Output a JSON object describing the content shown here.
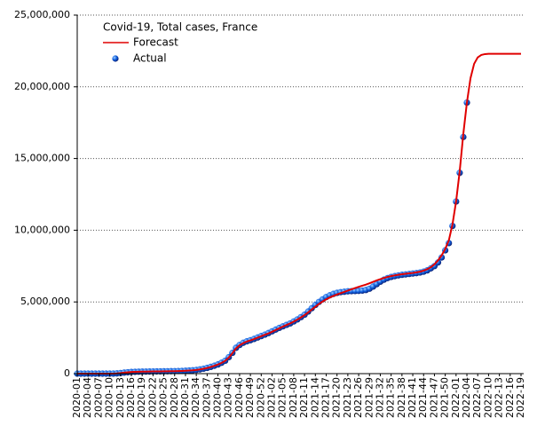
{
  "chart_data": {
    "type": "line",
    "title": "Covid-19, Total cases, France",
    "categories": [
      "2020-01",
      null,
      null,
      "2020-04",
      null,
      null,
      "2020-07",
      null,
      null,
      "2020-10",
      null,
      null,
      "2020-13",
      null,
      null,
      "2020-16",
      null,
      null,
      "2020-19",
      null,
      null,
      "2020-22",
      null,
      null,
      "2020-25",
      null,
      null,
      "2020-28",
      null,
      null,
      "2020-31",
      null,
      null,
      "2020-34",
      null,
      null,
      "2020-37",
      null,
      null,
      "2020-40",
      null,
      null,
      "2020-43",
      null,
      null,
      "2020-46",
      null,
      null,
      "2020-49",
      null,
      null,
      "2020-52",
      null,
      null,
      "2021-02",
      null,
      null,
      "2021-05",
      null,
      null,
      "2021-08",
      null,
      null,
      "2021-11",
      null,
      null,
      "2021-14",
      null,
      null,
      "2021-17",
      null,
      null,
      "2021-20",
      null,
      null,
      "2021-23",
      null,
      null,
      "2021-26",
      null,
      null,
      "2021-29",
      null,
      null,
      "2021-32",
      null,
      null,
      "2021-35",
      null,
      null,
      "2021-38",
      null,
      null,
      "2021-41",
      null,
      null,
      "2021-44",
      null,
      null,
      "2021-47",
      null,
      null,
      "2021-50",
      null,
      null,
      "2022-01",
      null,
      null,
      "2022-04",
      null,
      null,
      "2022-07",
      null,
      null,
      "2022-10",
      null,
      null,
      "2022-13",
      null,
      null,
      "2022-16",
      null,
      null,
      "2022-19"
    ],
    "series": [
      {
        "name": "Forecast",
        "style": "line",
        "color": "#e00000",
        "values": [
          0,
          0,
          0,
          0,
          0,
          0,
          0,
          0,
          0,
          1000,
          4000,
          15000,
          38000,
          68000,
          93000,
          113000,
          124000,
          133000,
          139000,
          143000,
          147000,
          151000,
          154000,
          157000,
          160000,
          164000,
          169000,
          174000,
          181000,
          189000,
          199000,
          213000,
          233000,
          258000,
          292000,
          340000,
          395000,
          465000,
          545000,
          635000,
          750000,
          890000,
          1120000,
          1420000,
          1760000,
          1980000,
          2130000,
          2240000,
          2320000,
          2410000,
          2510000,
          2610000,
          2710000,
          2800000,
          2920000,
          3040000,
          3160000,
          3280000,
          3390000,
          3500000,
          3630000,
          3770000,
          3920000,
          4080000,
          4270000,
          4470000,
          4670000,
          4860000,
          5030000,
          5180000,
          5310000,
          5420000,
          5520000,
          5610000,
          5700000,
          5790000,
          5880000,
          5970000,
          6050000,
          6130000,
          6210000,
          6300000,
          6400000,
          6500000,
          6590000,
          6670000,
          6740000,
          6800000,
          6850000,
          6890000,
          6930000,
          6960000,
          6990000,
          7020000,
          7060000,
          7110000,
          7180000,
          7280000,
          7420000,
          7620000,
          7900000,
          8250000,
          8700000,
          9300000,
          10400000,
          12000000,
          14100000,
          16700000,
          18900000,
          20600000,
          21600000,
          22050000,
          22220000,
          22280000,
          22300000,
          22300000,
          22300000,
          22300000,
          22300000,
          22300000,
          22300000,
          22300000,
          22300000,
          22300000
        ]
      },
      {
        "name": "Actual",
        "style": "dots",
        "color": "#1060e0",
        "values": [
          0,
          0,
          0,
          0,
          0,
          0,
          0,
          0,
          0,
          1100,
          4500,
          16000,
          40000,
          70000,
          95000,
          115000,
          125000,
          135000,
          140000,
          143000,
          148000,
          152000,
          155000,
          158000,
          161000,
          165000,
          170000,
          175000,
          182000,
          190000,
          200000,
          215000,
          235000,
          260000,
          295000,
          345000,
          400000,
          470000,
          550000,
          640000,
          760000,
          900000,
          1150000,
          1450000,
          1800000,
          2000000,
          2150000,
          2250000,
          2330000,
          2420000,
          2520000,
          2620000,
          2720000,
          2830000,
          2950000,
          3070000,
          3190000,
          3300000,
          3400000,
          3500000,
          3640000,
          3780000,
          3940000,
          4110000,
          4330000,
          4560000,
          4790000,
          5000000,
          5180000,
          5340000,
          5460000,
          5560000,
          5630000,
          5680000,
          5710000,
          5740000,
          5750000,
          5760000,
          5770000,
          5790000,
          5830000,
          5920000,
          6070000,
          6240000,
          6410000,
          6550000,
          6660000,
          6740000,
          6800000,
          6850000,
          6890000,
          6920000,
          6950000,
          6980000,
          7010000,
          7050000,
          7110000,
          7200000,
          7340000,
          7500000,
          7750000,
          8100000,
          8600000,
          9100000,
          10300000,
          12000000,
          14000000,
          16500000,
          18900000,
          null,
          null,
          null,
          null,
          null,
          null,
          null,
          null,
          null,
          null,
          null,
          null,
          null,
          null,
          null
        ]
      }
    ],
    "ylim": [
      0,
      25000000
    ],
    "yticks": [
      0,
      {
        "value": 5000000,
        "label": "5,000,000"
      },
      {
        "value": 10000000,
        "label": "10,000,000"
      },
      {
        "value": 15000000,
        "label": "15,000,000"
      },
      {
        "value": 20000000,
        "label": "20,000,000"
      },
      {
        "value": 25000000,
        "label": "25,000,000"
      }
    ],
    "grid": true,
    "legend": "upper-left"
  }
}
